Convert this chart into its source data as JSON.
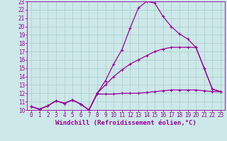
{
  "background_color": "#cce8e8",
  "grid_color": "#aacccc",
  "line_color": "#990099",
  "xlabel": "Windchill (Refroidissement éolien,°C)",
  "xlabel_fontsize": 6.5,
  "tick_fontsize": 5.5,
  "xlim": [
    -0.5,
    23.5
  ],
  "ylim": [
    10,
    23
  ],
  "yticks": [
    10,
    11,
    12,
    13,
    14,
    15,
    16,
    17,
    18,
    19,
    20,
    21,
    22,
    23
  ],
  "xticks": [
    0,
    1,
    2,
    3,
    4,
    5,
    6,
    7,
    8,
    9,
    10,
    11,
    12,
    13,
    14,
    15,
    16,
    17,
    18,
    19,
    20,
    21,
    22,
    23
  ],
  "curve1_x": [
    0,
    1,
    2,
    3,
    4,
    5,
    6,
    7,
    8,
    9,
    10,
    11,
    12,
    13,
    14,
    15,
    16,
    17,
    18,
    19,
    20,
    21,
    22,
    23
  ],
  "curve1_y": [
    10.4,
    10.1,
    10.5,
    11.1,
    10.8,
    11.2,
    10.7,
    10.0,
    11.9,
    11.9,
    11.9,
    12.0,
    12.0,
    12.0,
    12.1,
    12.2,
    12.3,
    12.4,
    12.4,
    12.4,
    12.4,
    12.3,
    12.2,
    12.2
  ],
  "curve2_x": [
    0,
    1,
    2,
    3,
    4,
    5,
    6,
    7,
    8,
    9,
    10,
    11,
    12,
    13,
    14,
    15,
    16,
    17,
    18,
    19,
    20,
    21,
    22,
    23
  ],
  "curve2_y": [
    10.4,
    10.1,
    10.5,
    11.1,
    10.8,
    11.2,
    10.7,
    10.0,
    12.0,
    13.5,
    15.5,
    17.2,
    19.8,
    22.2,
    23.0,
    22.8,
    21.2,
    20.0,
    19.1,
    18.5,
    17.5,
    15.0,
    12.5,
    12.2
  ],
  "curve3_x": [
    0,
    1,
    2,
    3,
    4,
    5,
    6,
    7,
    8,
    9,
    10,
    11,
    12,
    13,
    14,
    15,
    16,
    17,
    18,
    19,
    20,
    21,
    22,
    23
  ],
  "curve3_y": [
    10.4,
    10.1,
    10.5,
    11.1,
    10.8,
    11.2,
    10.7,
    10.0,
    12.0,
    13.0,
    14.0,
    14.8,
    15.5,
    16.0,
    16.5,
    17.0,
    17.3,
    17.5,
    17.5,
    17.5,
    17.5,
    15.0,
    12.5,
    12.2
  ]
}
